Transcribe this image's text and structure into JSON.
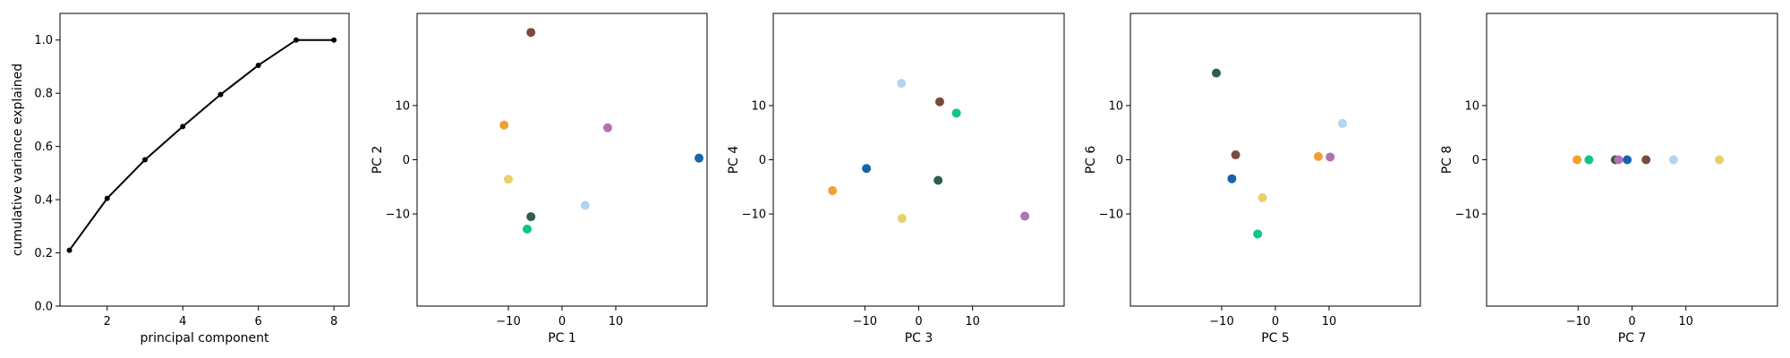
{
  "chart_data": [
    {
      "type": "line",
      "xlabel": "principal component",
      "ylabel": "cumulative variance explained",
      "x": [
        1,
        2,
        3,
        4,
        5,
        6,
        7,
        8
      ],
      "y": [
        0.21,
        0.405,
        0.55,
        0.675,
        0.795,
        0.905,
        1.0,
        1.0
      ],
      "xlim": [
        0.75,
        8.4
      ],
      "ylim": [
        0.0,
        1.1
      ],
      "xticks": [
        2,
        4,
        6,
        8
      ],
      "yticks": [
        0.0,
        0.2,
        0.4,
        0.6,
        0.8,
        1.0
      ],
      "xtick_labels": [
        "2",
        "4",
        "6",
        "8"
      ],
      "ytick_labels": [
        "0.0",
        "0.2",
        "0.4",
        "0.6",
        "0.8",
        "1.0"
      ],
      "color": "#000000",
      "grid": false
    },
    {
      "type": "scatter",
      "xlabel": "PC 1",
      "ylabel": "PC 2",
      "xlim": [
        -27,
        27
      ],
      "ylim": [
        -27,
        27
      ],
      "xticks": [
        -10,
        0,
        10
      ],
      "yticks": [
        -10,
        0,
        10
      ],
      "xtick_labels": [
        "−10",
        "0",
        "10"
      ],
      "ytick_labels": [
        "−10",
        "0",
        "10"
      ],
      "points": [
        {
          "x": -5.8,
          "y": 23.5,
          "color": "#7b4a3f"
        },
        {
          "x": -10.8,
          "y": 6.4,
          "color": "#f0a030"
        },
        {
          "x": 8.5,
          "y": 5.9,
          "color": "#b073b0"
        },
        {
          "x": 25.5,
          "y": 0.3,
          "color": "#1764ab"
        },
        {
          "x": -10.0,
          "y": -3.6,
          "color": "#e8d06a"
        },
        {
          "x": 4.3,
          "y": -8.4,
          "color": "#b4d4ef"
        },
        {
          "x": -5.8,
          "y": -10.5,
          "color": "#2f5e4a"
        },
        {
          "x": -6.5,
          "y": -12.8,
          "color": "#10c48c"
        }
      ],
      "grid": false
    },
    {
      "type": "scatter",
      "xlabel": "PC 3",
      "ylabel": "PC 4",
      "xlim": [
        -27,
        27
      ],
      "ylim": [
        -27,
        27
      ],
      "xticks": [
        -10,
        0,
        10
      ],
      "yticks": [
        -10,
        0,
        10
      ],
      "xtick_labels": [
        "−10",
        "0",
        "10"
      ],
      "ytick_labels": [
        "−10",
        "0",
        "10"
      ],
      "points": [
        {
          "x": -3.2,
          "y": 14.1,
          "color": "#b4d4ef"
        },
        {
          "x": 3.9,
          "y": 10.7,
          "color": "#7b4a3f"
        },
        {
          "x": 7.0,
          "y": 8.6,
          "color": "#10c48c"
        },
        {
          "x": -9.7,
          "y": -1.6,
          "color": "#1764ab"
        },
        {
          "x": 3.6,
          "y": -3.8,
          "color": "#2f5e4a"
        },
        {
          "x": -16.0,
          "y": -5.7,
          "color": "#f0a030"
        },
        {
          "x": -3.1,
          "y": -10.8,
          "color": "#e8d06a"
        },
        {
          "x": 19.7,
          "y": -10.4,
          "color": "#b073b0"
        }
      ],
      "grid": false
    },
    {
      "type": "scatter",
      "xlabel": "PC 5",
      "ylabel": "PC 6",
      "xlim": [
        -27,
        27
      ],
      "ylim": [
        -27,
        27
      ],
      "xticks": [
        -10,
        0,
        10
      ],
      "yticks": [
        -10,
        0,
        10
      ],
      "xtick_labels": [
        "−10",
        "0",
        "10"
      ],
      "ytick_labels": [
        "−10",
        "0",
        "10"
      ],
      "points": [
        {
          "x": -11.0,
          "y": 16.0,
          "color": "#2f5e4a"
        },
        {
          "x": 12.5,
          "y": 6.7,
          "color": "#b4d4ef"
        },
        {
          "x": -7.4,
          "y": 0.9,
          "color": "#7b4a3f"
        },
        {
          "x": 8.0,
          "y": 0.6,
          "color": "#f0a030"
        },
        {
          "x": 10.2,
          "y": 0.5,
          "color": "#b073b0"
        },
        {
          "x": -8.1,
          "y": -3.5,
          "color": "#1764ab"
        },
        {
          "x": -2.4,
          "y": -7.0,
          "color": "#e8d06a"
        },
        {
          "x": -3.3,
          "y": -13.7,
          "color": "#10c48c"
        }
      ],
      "grid": false
    },
    {
      "type": "scatter",
      "xlabel": "PC 7",
      "ylabel": "PC 8",
      "xlim": [
        -27,
        27
      ],
      "ylim": [
        -27,
        27
      ],
      "xticks": [
        -10,
        0,
        10
      ],
      "yticks": [
        -10,
        0,
        10
      ],
      "xtick_labels": [
        "−10",
        "0",
        "10"
      ],
      "ytick_labels": [
        "−10",
        "0",
        "10"
      ],
      "points": [
        {
          "x": -10.2,
          "y": 0.0,
          "color": "#f0a030"
        },
        {
          "x": -8.0,
          "y": 0.0,
          "color": "#10c48c"
        },
        {
          "x": -3.1,
          "y": 0.0,
          "color": "#2f5e4a"
        },
        {
          "x": -2.5,
          "y": 0.0,
          "color": "#b073b0"
        },
        {
          "x": -0.9,
          "y": 0.0,
          "color": "#1764ab"
        },
        {
          "x": 2.6,
          "y": 0.0,
          "color": "#7b4a3f"
        },
        {
          "x": 7.7,
          "y": 0.0,
          "color": "#b4d4ef"
        },
        {
          "x": 16.2,
          "y": 0.0,
          "color": "#e8d06a"
        }
      ],
      "grid": false
    }
  ]
}
